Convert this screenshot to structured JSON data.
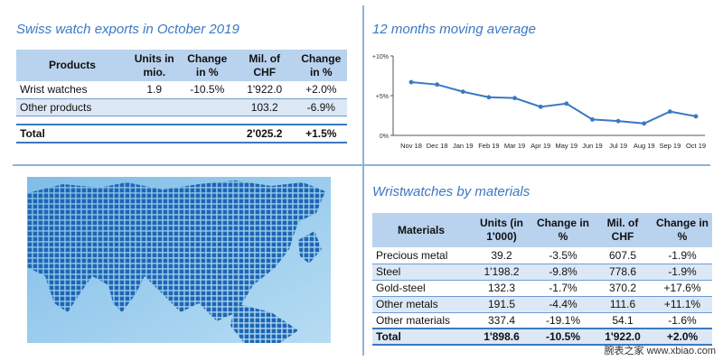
{
  "exports": {
    "title": "Swiss watch exports in October 2019",
    "headers": [
      "Products",
      "Units in mio.",
      "Change in %",
      "Mil. of CHF",
      "Change in %"
    ],
    "rows": [
      {
        "name": "Wrist watches",
        "units": "1.9",
        "change": "-10.5%",
        "chf": "1'922.0",
        "change_chf": "+2.0%"
      },
      {
        "name": "Other products",
        "units": "",
        "change": "",
        "chf": "103.2",
        "change_chf": "-6.9%"
      }
    ],
    "total": {
      "name": "Total",
      "units": "",
      "change": "",
      "chf": "2'025.2",
      "change_chf": "+1.5%"
    }
  },
  "moving_average": {
    "title": "12 months moving average"
  },
  "materials": {
    "title": "Wristwatches by materials",
    "headers": [
      "Materials",
      "Units (in 1'000)",
      "Change in %",
      "Mil. of CHF",
      "Change in %"
    ],
    "rows": [
      {
        "name": "Precious metal",
        "units": "39.2",
        "change": "-3.5%",
        "chf": "607.5",
        "change_chf": "-1.9%"
      },
      {
        "name": "Steel",
        "units": "1'198.2",
        "change": "-9.8%",
        "chf": "778.6",
        "change_chf": "-1.9%"
      },
      {
        "name": "Gold-steel",
        "units": "132.3",
        "change": "-1.7%",
        "chf": "370.2",
        "change_chf": "+17.6%"
      },
      {
        "name": "Other metals",
        "units": "191.5",
        "change": "-4.4%",
        "chf": "111.6",
        "change_chf": "+11.1%"
      },
      {
        "name": "Other materials",
        "units": "337.4",
        "change": "-19.1%",
        "chf": "54.1",
        "change_chf": "-1.6%"
      }
    ],
    "total": {
      "name": "Total",
      "units": "1'898.6",
      "change": "-10.5%",
      "chf": "1'922.0",
      "change_chf": "+2.0%"
    }
  },
  "chart_data": {
    "type": "line",
    "title": "12 months moving average",
    "categories": [
      "Nov 18",
      "Dec 18",
      "Jan 19",
      "Feb 19",
      "Mar 19",
      "Apr 19",
      "May 19",
      "Jun 19",
      "Jul 19",
      "Aug 19",
      "Sep 19",
      "Oct 19"
    ],
    "series": [
      {
        "values": [
          6.7,
          6.4,
          5.5,
          4.8,
          4.7,
          3.6,
          4.0,
          2.0,
          1.8,
          1.5,
          3.0,
          2.4
        ]
      }
    ],
    "yticks": [
      "0%",
      "+5%",
      "+10%"
    ],
    "ylim": [
      0,
      10
    ],
    "line_color": "#3b78c2",
    "grid": false
  },
  "watermark": "腕表之家 www.xbiao.com",
  "colors": {
    "accent": "#3b78c2",
    "header_fill": "#b9d2ee",
    "row_shade": "#dce8f6",
    "map_blue": "#3a8fd0"
  }
}
